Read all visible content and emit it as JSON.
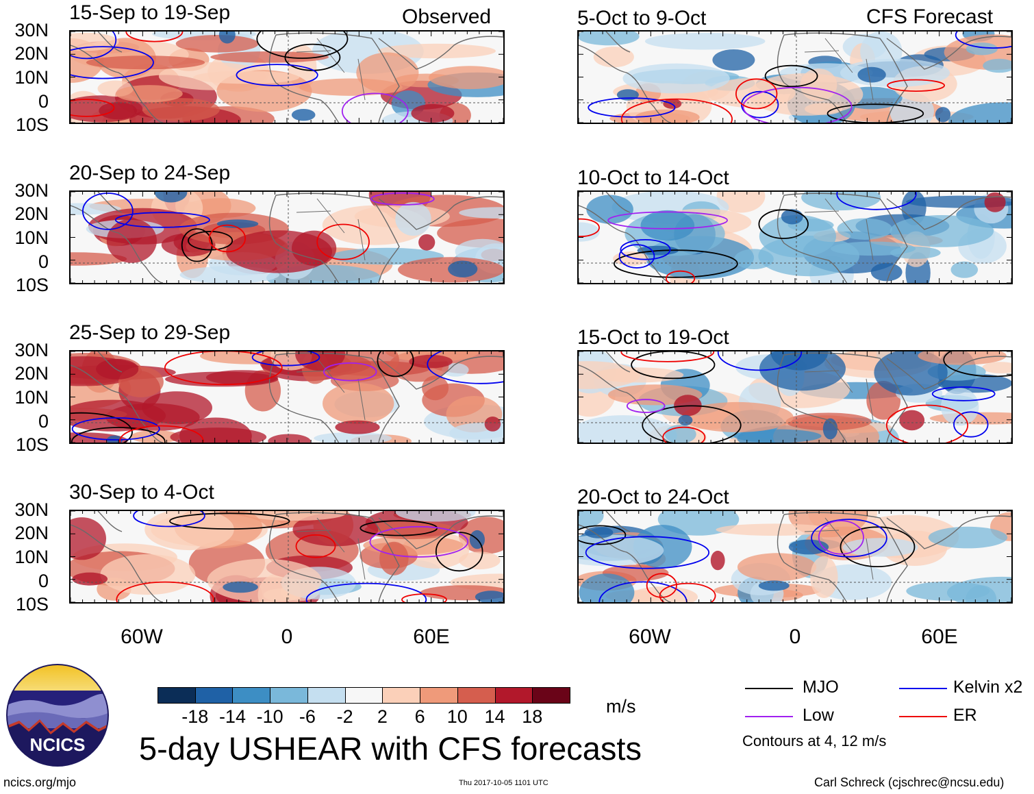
{
  "figure_title": "5-day USHEAR with CFS forecasts",
  "units": "m/s",
  "source_url": "ncics.org/mjo",
  "timestamp": "Thu 2017-10-05 1101 UTC",
  "author": "Carl Schreck (cjschrec@ncsu.edu)",
  "logo_text": "NCICS",
  "columns": {
    "observed": "Observed",
    "forecast": "CFS Forecast"
  },
  "observed_periods": [
    "15-Sep to 19-Sep",
    "20-Sep to 24-Sep",
    "25-Sep to 29-Sep",
    "30-Sep to 4-Oct"
  ],
  "forecast_periods": [
    "5-Oct to 9-Oct",
    "10-Oct to 14-Oct",
    "15-Oct to 19-Oct",
    "20-Oct to 24-Oct"
  ],
  "lat_labels": [
    "30N",
    "20N",
    "10N",
    "0",
    "10S"
  ],
  "lon_labels": [
    "60W",
    "0",
    "60E"
  ],
  "colorbar": {
    "labels": [
      "-18",
      "-14",
      "-10",
      "-6",
      "-2",
      "2",
      "6",
      "10",
      "14",
      "18"
    ],
    "colors": [
      "#0b2d57",
      "#1f61a6",
      "#3d8ec4",
      "#7ab8da",
      "#c5dff0",
      "#f7f7f7",
      "#fbd0b9",
      "#ef9a7a",
      "#d55e4e",
      "#b2182b",
      "#6a0418"
    ]
  },
  "legend": {
    "items": [
      {
        "label": "MJO",
        "color": "#000000"
      },
      {
        "label": "Kelvin x2",
        "color": "#0000ee"
      },
      {
        "label": "Low",
        "color": "#a020f0"
      },
      {
        "label": "ER",
        "color": "#ee0000"
      }
    ],
    "note": "Contours at 4, 12 m/s"
  },
  "map_data": {
    "region": "Tropical Atlantic / Africa",
    "lon_range": [
      -90,
      90
    ],
    "lat_range": [
      -10,
      30
    ],
    "field": "USHEAR anomaly (m/s)",
    "contour_levels_ms": [
      4,
      12
    ]
  }
}
